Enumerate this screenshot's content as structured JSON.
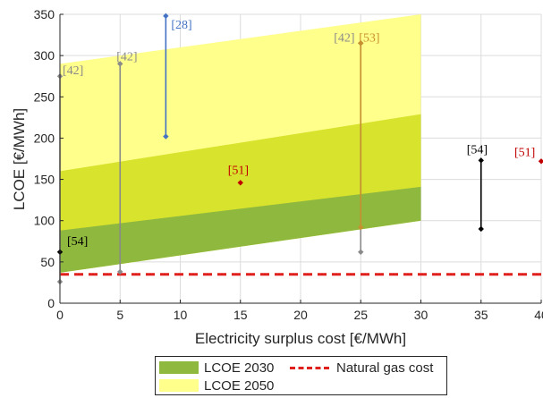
{
  "chart_data": {
    "type": "area",
    "xlabel": "Electricity surplus cost [€/MWh]",
    "ylabel": "LCOE [€/MWh]",
    "xlim": [
      0,
      40
    ],
    "ylim": [
      0,
      350
    ],
    "xticks": [
      "0",
      "5",
      "10",
      "15",
      "20",
      "25",
      "30",
      "35",
      "40"
    ],
    "yticks": [
      "0",
      "50",
      "100",
      "150",
      "200",
      "250",
      "300",
      "350"
    ],
    "grid": true,
    "legend_position": "bottom",
    "bands": [
      {
        "name": "LCOE 2050",
        "color": "#ffff8c",
        "x": [
          0,
          30
        ],
        "lower": [
          37,
          100
        ],
        "upper": [
          290,
          350
        ]
      },
      {
        "name": "LCOE 2050",
        "color": "#d8e32e",
        "x": [
          0,
          30
        ],
        "lower": [
          37,
          100
        ],
        "upper": [
          160,
          229
        ]
      },
      {
        "name": "LCOE 2030",
        "color": "#8fb83e",
        "x": [
          0,
          30
        ],
        "lower": [
          37,
          100
        ],
        "upper": [
          88,
          141
        ]
      }
    ],
    "reference_line": {
      "name": "Natural gas cost",
      "value": 35,
      "color": "#e0201c"
    },
    "ranges": [
      {
        "ref": "[42]",
        "x": 0,
        "low": 26,
        "high": 275,
        "color": "#8a8a8a",
        "label_color": "#8a8a8a"
      },
      {
        "ref": "[54]",
        "x": 0,
        "low": 62,
        "high": 62,
        "color": "#000000",
        "label_color": "#000000"
      },
      {
        "ref": "[42]",
        "x": 5,
        "low": 38,
        "high": 290,
        "color": "#8a8a8a",
        "label_color": "#8a8a8a"
      },
      {
        "ref": "[28]",
        "x": 8.8,
        "low": 202,
        "high": 348,
        "color": "#4472c4",
        "label_color": "#4472c4"
      },
      {
        "ref": "[51]",
        "x": 15,
        "low": 146,
        "high": 146,
        "color": "#c00000",
        "label_color": "#c00000"
      },
      {
        "ref": "[42]",
        "x": 25,
        "low": 62,
        "high": 315,
        "color": "#8a8a8a",
        "label_color": "#8a8a8a"
      },
      {
        "ref": "[53]",
        "x": 25,
        "low": 92,
        "high": 315,
        "color": "#c8902e",
        "label_color": "#c8902e"
      },
      {
        "ref": "[54]",
        "x": 35,
        "low": 90,
        "high": 173,
        "color": "#000000",
        "label_color": "#000000"
      },
      {
        "ref": "[51]",
        "x": 40,
        "low": 172,
        "high": 172,
        "color": "#c00000",
        "label_color": "#c00000"
      }
    ],
    "legend": [
      {
        "label": "LCOE 2030",
        "style": "fill",
        "color": "#8fb83e"
      },
      {
        "label": "Natural gas cost",
        "style": "dashed",
        "color": "#e0201c"
      },
      {
        "label": "LCOE 2050",
        "style": "fill",
        "color": "#ffff8c"
      }
    ]
  }
}
